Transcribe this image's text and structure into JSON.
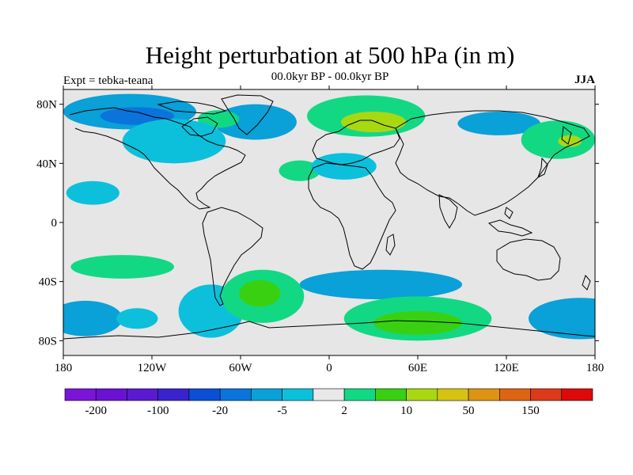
{
  "title": "Height perturbation at 500 hPa (in m)",
  "left_string": "Expt = tebka-teana",
  "center_string": "00.0kyr BP - 00.0kyr BP",
  "right_string": "JJA",
  "map": {
    "projection": "cylindrical-equidistant",
    "lon_range": [
      -180,
      180
    ],
    "lat_range": [
      -90,
      90
    ],
    "missing_color": "#e6e6e6",
    "coastline_color": "#000000"
  },
  "y_ticks": [
    {
      "lat": 80,
      "label": "80N"
    },
    {
      "lat": 40,
      "label": "40N"
    },
    {
      "lat": 0,
      "label": "0"
    },
    {
      "lat": -40,
      "label": "40S"
    },
    {
      "lat": -80,
      "label": "80S"
    }
  ],
  "x_ticks": [
    {
      "lon": -180,
      "label": "180"
    },
    {
      "lon": -120,
      "label": "120W"
    },
    {
      "lon": -60,
      "label": "60W"
    },
    {
      "lon": 0,
      "label": "0"
    },
    {
      "lon": 60,
      "label": "60E"
    },
    {
      "lon": 120,
      "label": "120E"
    },
    {
      "lon": 180,
      "label": "180"
    }
  ],
  "colorbar": {
    "colors": [
      "#7a14d6",
      "#6a12d2",
      "#5a1ad0",
      "#3a22cc",
      "#0b4fd4",
      "#0a74dc",
      "#0aa0d8",
      "#0cc0dc",
      "#e8e8e8",
      "#12d884",
      "#3ad012",
      "#a8d812",
      "#d6c212",
      "#dc9412",
      "#dc6412",
      "#dc3a1a",
      "#dc0a0a"
    ],
    "labels": [
      {
        "after_box": 1,
        "text": "-200"
      },
      {
        "after_box": 3,
        "text": "-100"
      },
      {
        "after_box": 5,
        "text": "-20"
      },
      {
        "after_box": 7,
        "text": "-5"
      },
      {
        "after_box": 9,
        "text": "2"
      },
      {
        "after_box": 11,
        "text": "10"
      },
      {
        "after_box": 13,
        "text": "50"
      },
      {
        "after_box": 15,
        "text": "150"
      }
    ]
  },
  "chart_data": {
    "type": "heatmap",
    "title": "Height perturbation at 500 hPa (in m)",
    "subtitle": "00.0kyr BP - 00.0kyr BP",
    "left_label": "Expt = tebka-teana",
    "season": "JJA",
    "units": "m",
    "lon_range": [
      -180,
      180
    ],
    "lat_range": [
      -90,
      90
    ],
    "anomaly_regions": [
      {
        "level_color": "#0aa0d8",
        "lon": -135,
        "lat": 75,
        "rx": 45,
        "ry": 12
      },
      {
        "level_color": "#0a74dc",
        "lon": -130,
        "lat": 72,
        "rx": 25,
        "ry": 6
      },
      {
        "level_color": "#0aa0d8",
        "lon": -50,
        "lat": 68,
        "rx": 28,
        "ry": 12
      },
      {
        "level_color": "#12d884",
        "lon": -75,
        "lat": 70,
        "rx": 14,
        "ry": 6
      },
      {
        "level_color": "#12d884",
        "lon": 25,
        "lat": 72,
        "rx": 40,
        "ry": 14
      },
      {
        "level_color": "#a8d812",
        "lon": 30,
        "lat": 68,
        "rx": 22,
        "ry": 7
      },
      {
        "level_color": "#0aa0d8",
        "lon": 115,
        "lat": 67,
        "rx": 28,
        "ry": 8
      },
      {
        "level_color": "#12d884",
        "lon": 155,
        "lat": 56,
        "rx": 25,
        "ry": 13
      },
      {
        "level_color": "#a8d812",
        "lon": 163,
        "lat": 55,
        "rx": 8,
        "ry": 4
      },
      {
        "level_color": "#0cc0dc",
        "lon": -105,
        "lat": 55,
        "rx": 35,
        "ry": 15
      },
      {
        "level_color": "#0cc0dc",
        "lon": -160,
        "lat": 20,
        "rx": 18,
        "ry": 8
      },
      {
        "level_color": "#12d884",
        "lon": -20,
        "lat": 35,
        "rx": 14,
        "ry": 7
      },
      {
        "level_color": "#0cc0dc",
        "lon": 10,
        "lat": 38,
        "rx": 22,
        "ry": 9
      },
      {
        "level_color": "#12d884",
        "lon": -140,
        "lat": -30,
        "rx": 35,
        "ry": 8
      },
      {
        "level_color": "#0cc0dc",
        "lon": -80,
        "lat": -60,
        "rx": 22,
        "ry": 18
      },
      {
        "level_color": "#12d884",
        "lon": -45,
        "lat": -50,
        "rx": 28,
        "ry": 18
      },
      {
        "level_color": "#3ad012",
        "lon": -47,
        "lat": -48,
        "rx": 14,
        "ry": 9
      },
      {
        "level_color": "#0aa0d8",
        "lon": 35,
        "lat": -42,
        "rx": 55,
        "ry": 10
      },
      {
        "level_color": "#12d884",
        "lon": 60,
        "lat": -65,
        "rx": 50,
        "ry": 15
      },
      {
        "level_color": "#3ad012",
        "lon": 60,
        "lat": -68,
        "rx": 30,
        "ry": 8
      },
      {
        "level_color": "#0aa0d8",
        "lon": 170,
        "lat": -65,
        "rx": 35,
        "ry": 14
      },
      {
        "level_color": "#0aa0d8",
        "lon": -165,
        "lat": -65,
        "rx": 25,
        "ry": 12
      },
      {
        "level_color": "#0cc0dc",
        "lon": -130,
        "lat": -65,
        "rx": 14,
        "ry": 7
      }
    ],
    "colorbar_levels": [
      "-200",
      "-100",
      "-20",
      "-5",
      "2",
      "10",
      "50",
      "150"
    ]
  }
}
